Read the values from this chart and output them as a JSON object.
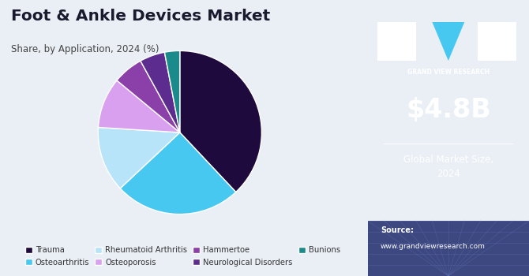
{
  "title": "Foot & Ankle Devices Market",
  "subtitle": "Share, by Application, 2024 (%)",
  "labels": [
    "Trauma",
    "Osteoarthritis",
    "Rheumatoid Arthritis",
    "Osteoporosis",
    "Hammertoe",
    "Neurological Disorders",
    "Bunions"
  ],
  "sizes": [
    38,
    25,
    13,
    10,
    6,
    5,
    3
  ],
  "colors": [
    "#1e0a3c",
    "#47c8f0",
    "#b8e4f9",
    "#d9a0f0",
    "#8b3fa8",
    "#5c2d8f",
    "#1a8a8a"
  ],
  "bg_color": "#eaeff6",
  "right_panel_color": "#3b1f6e",
  "right_panel_bottom_color": "#4a5aa0",
  "market_size_text": "$4.8B",
  "market_size_label": "Global Market Size,\n2024",
  "source_label": "Source:",
  "source_url": "www.grandviewresearch.com",
  "startangle": 90
}
